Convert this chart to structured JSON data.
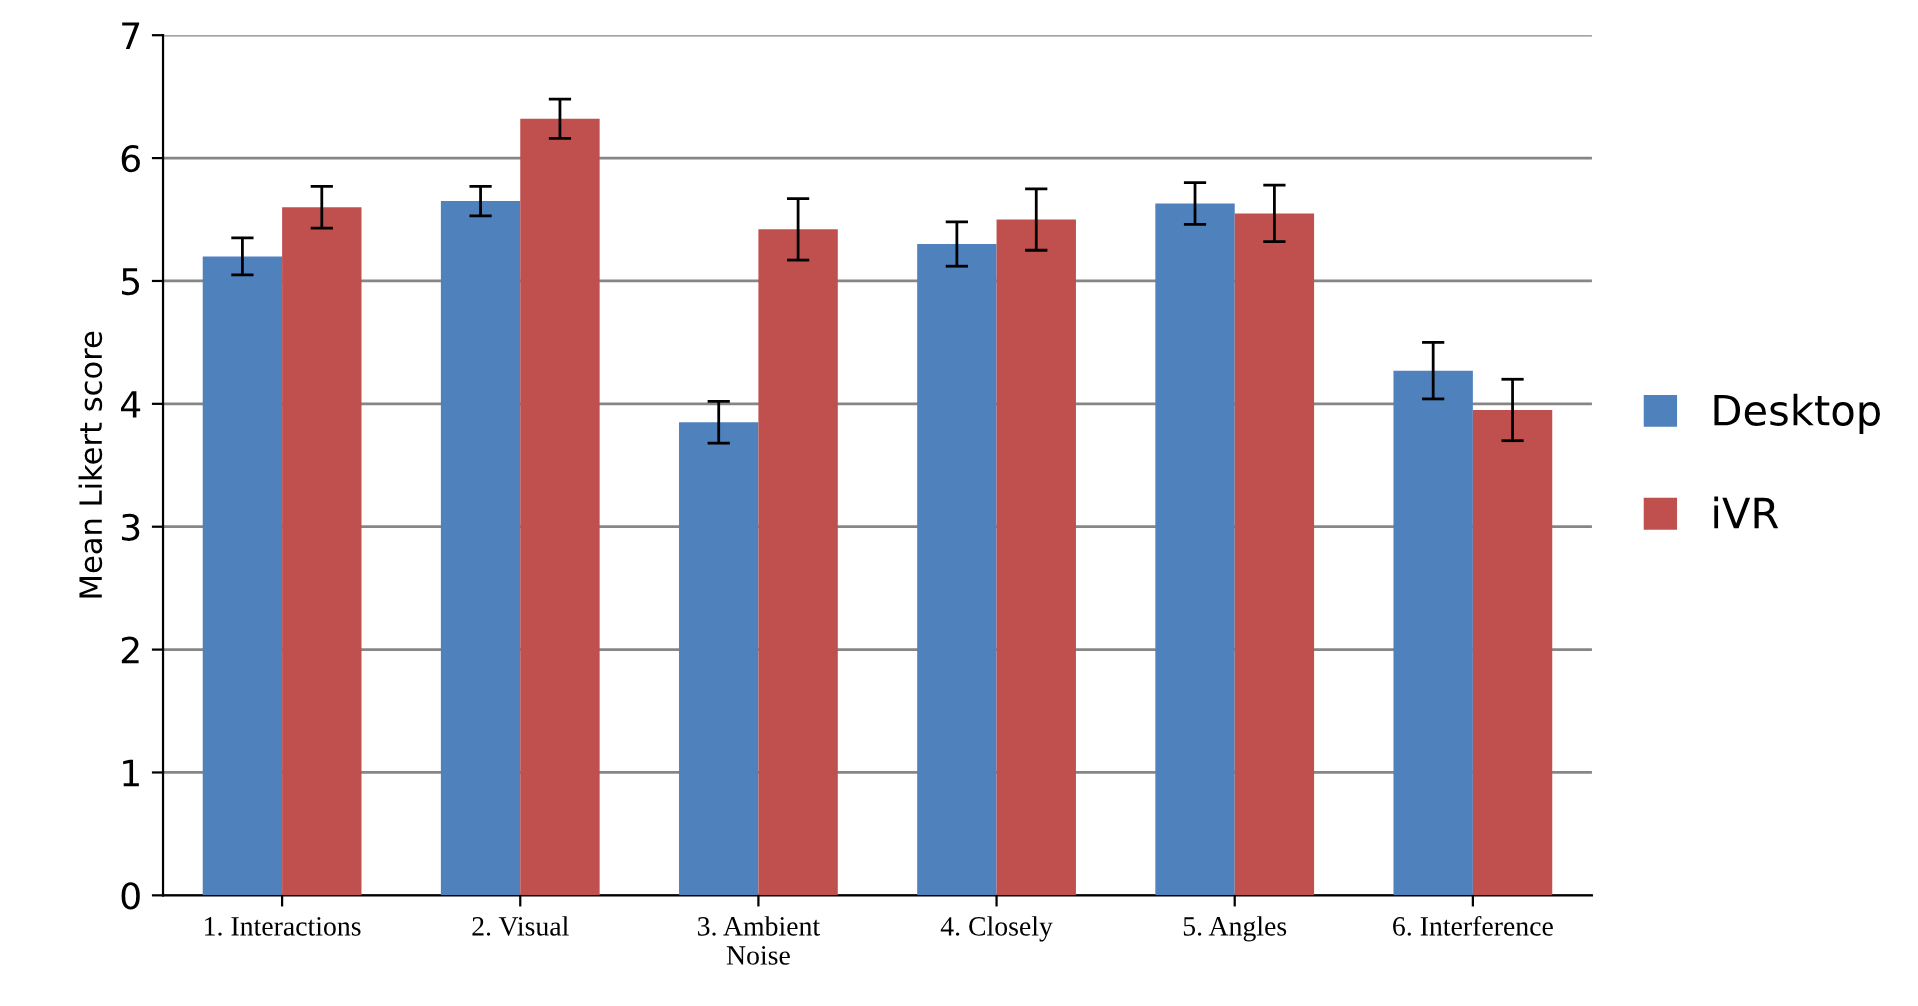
{
  "chart_data": {
    "type": "bar",
    "ylabel": "Mean Likert score",
    "categories": [
      "1. Interactions",
      "2. Visual",
      "3. Ambient\nNoise",
      "4. Closely",
      "5. Angles",
      "6. Interference"
    ],
    "series": [
      {
        "name": "Desktop",
        "color": "#4f81bd",
        "values": [
          5.2,
          5.65,
          3.85,
          5.3,
          5.63,
          4.27
        ],
        "errors": [
          0.15,
          0.12,
          0.17,
          0.18,
          0.17,
          0.23
        ]
      },
      {
        "name": "iVR",
        "color": "#c0504d",
        "values": [
          5.6,
          6.32,
          5.42,
          5.5,
          5.55,
          3.95
        ],
        "errors": [
          0.17,
          0.16,
          0.25,
          0.25,
          0.23,
          0.25
        ]
      }
    ],
    "ylim": [
      0,
      7
    ],
    "yticks": [
      0,
      1,
      2,
      3,
      4,
      5,
      6,
      7
    ],
    "grid": "y",
    "legend": "right"
  }
}
